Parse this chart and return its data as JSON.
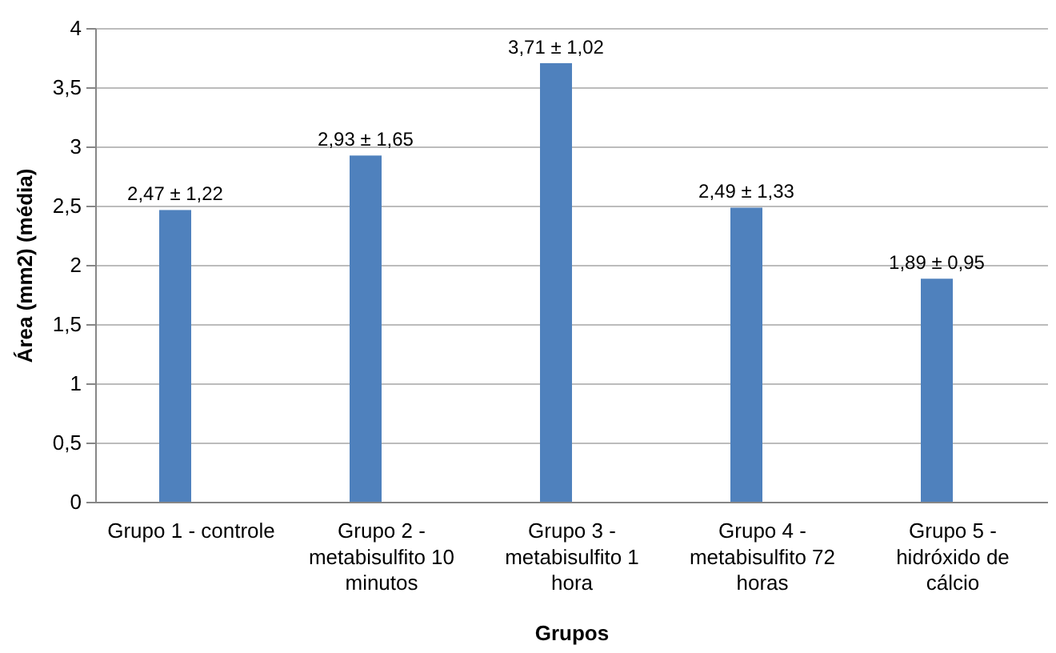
{
  "chart_data": {
    "type": "bar",
    "xlabel": "Grupos",
    "ylabel": "Área (mm2) (média)",
    "categories": [
      "Grupo 1 - controle",
      "Grupo 2 - metabisulfito 10 minutos",
      "Grupo 3 - metabisulfito 1 hora",
      "Grupo 4 - metabisulfito 72 horas",
      "Grupo 5 - hidróxido de cálcio"
    ],
    "values": [
      2.47,
      2.93,
      3.71,
      2.49,
      1.89
    ],
    "value_labels": [
      "2,47 ± 1,22",
      "2,93 ± 1,65",
      "3,71 ± 1,02",
      "2,49 ± 1,33",
      "1,89 ± 0,95"
    ],
    "color": "#4f81bd",
    "ylim": [
      0,
      4
    ],
    "yticks": [
      0,
      {
        "value": 0.5,
        "label": "0,5"
      },
      1,
      {
        "value": 1.5,
        "label": "1,5"
      },
      2,
      {
        "value": 2.5,
        "label": "2,5"
      },
      3,
      {
        "value": 3.5,
        "label": "3,5"
      },
      4
    ],
    "grid": "y"
  }
}
